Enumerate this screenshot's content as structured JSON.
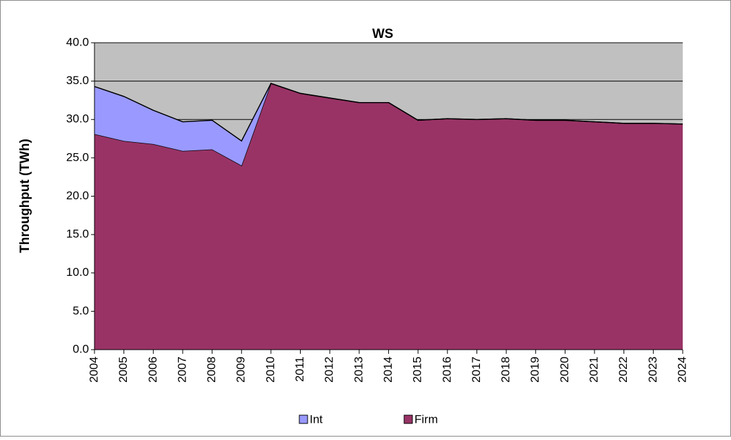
{
  "chart_data": {
    "type": "area",
    "title": "WS",
    "y_label": "Throughput (TWh)",
    "categories": [
      "2004",
      "2005",
      "2006",
      "2007",
      "2008",
      "2009",
      "2010",
      "2011",
      "2012",
      "2013",
      "2014",
      "2015",
      "2016",
      "2017",
      "2018",
      "2019",
      "2020",
      "2021",
      "2022",
      "2023",
      "2024"
    ],
    "stacked": true,
    "series": [
      {
        "name": "Firm",
        "color": "#993366",
        "values": [
          28.1,
          27.2,
          26.8,
          25.9,
          26.1,
          24.0,
          34.7,
          33.4,
          32.8,
          32.2,
          32.2,
          29.9,
          30.1,
          30.0,
          30.1,
          29.9,
          29.9,
          29.7,
          29.5,
          29.5,
          29.4
        ]
      },
      {
        "name": "Int",
        "color": "#9999ff",
        "values": [
          6.2,
          5.8,
          4.4,
          3.8,
          3.8,
          3.2,
          0,
          0,
          0,
          0,
          0,
          0,
          0,
          0,
          0,
          0,
          0,
          0,
          0,
          0,
          0
        ]
      }
    ],
    "legend_order": [
      "Int",
      "Firm"
    ],
    "ylim": [
      0,
      40
    ],
    "yticks": [
      {
        "value": 0,
        "label": "0.0"
      },
      {
        "value": 5,
        "label": "5.0"
      },
      {
        "value": 10,
        "label": "10.0"
      },
      {
        "value": 15,
        "label": "15.0"
      },
      {
        "value": 20,
        "label": "20.0"
      },
      {
        "value": 25,
        "label": "25.0"
      },
      {
        "value": 30,
        "label": "30.0"
      },
      {
        "value": 35,
        "label": "35.0"
      },
      {
        "value": 40,
        "label": "40.0"
      }
    ],
    "grid": true,
    "plot_background": "#c0c0c0",
    "legend": "bottom"
  }
}
